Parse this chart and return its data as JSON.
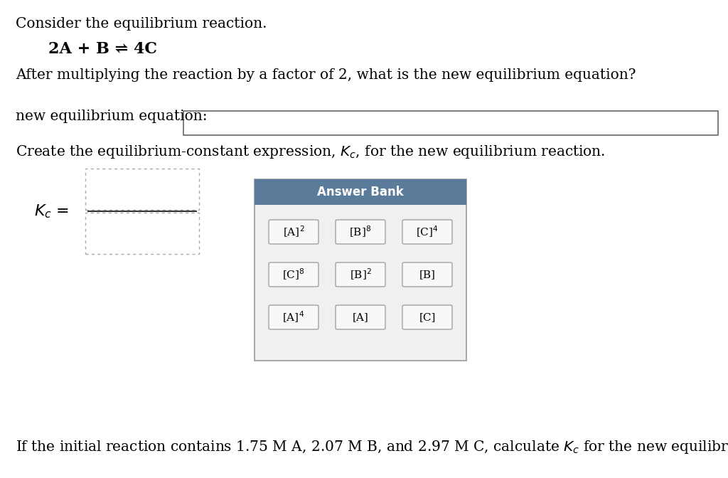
{
  "bg_color": "#ffffff",
  "text_color": "#000000",
  "line1": "Consider the equilibrium reaction.",
  "reaction": "2A + B ⇌ 4C",
  "line3": "After multiplying the reaction by a factor of 2, what is the new equilibrium equation?",
  "label_new_eq": "new equilibrium equation:",
  "answer_bank_title": "Answer Bank",
  "answer_bank_header_color": "#5b7b9b",
  "answer_bank_bg": "#f0f0f0",
  "answer_bank_border": "#999999",
  "answer_items_row1": [
    "[A]$^2$",
    "[B]$^8$",
    "[C]$^4$"
  ],
  "answer_items_row2": [
    "[C]$^8$",
    "[B]$^2$",
    "[B]"
  ],
  "answer_items_row3": [
    "[A]$^4$",
    "[A]",
    "[C]"
  ],
  "button_color": "#f8f8f8",
  "button_border": "#999999",
  "bottom_text": "If the initial reaction contains 1.75 M A, 2.07 M B, and 2.97 M C, calculate $K_c$ for the new equilibrium reaction."
}
